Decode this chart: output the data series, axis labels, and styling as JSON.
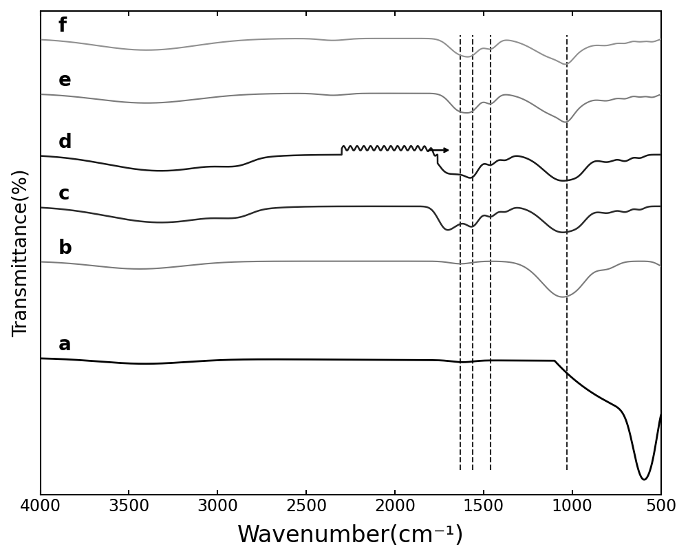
{
  "x_min": 500,
  "x_max": 4000,
  "xlabel": "Wavenumber(cm⁻¹)",
  "ylabel": "Transmittance(%)",
  "xlabel_fontsize": 24,
  "ylabel_fontsize": 20,
  "tick_fontsize": 17,
  "bg_color": "#ffffff",
  "line_colors": {
    "a": "#000000",
    "b": "#7a7a7a",
    "c": "#2a2a2a",
    "d": "#1a1a1a",
    "e": "#7a7a7a",
    "f": "#909090"
  },
  "line_widths": {
    "a": 2.0,
    "b": 1.5,
    "c": 1.8,
    "d": 1.8,
    "e": 1.5,
    "f": 1.5
  },
  "dashed_lines": [
    1630,
    1560,
    1460,
    1030
  ],
  "dashed_color": "#000000",
  "dashed_lw": 1.5,
  "label_fontsize": 20,
  "label_fontweight": "bold"
}
